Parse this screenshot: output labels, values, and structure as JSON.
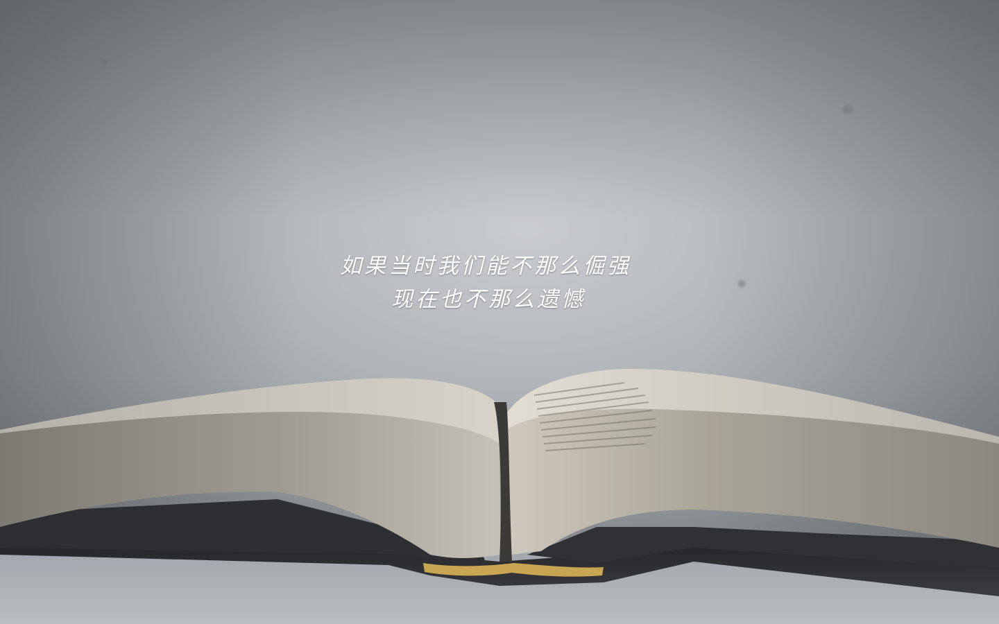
{
  "quote": {
    "line1": "如果当时我们能不那么倔强",
    "line2": "现在也不那么遗憾"
  }
}
